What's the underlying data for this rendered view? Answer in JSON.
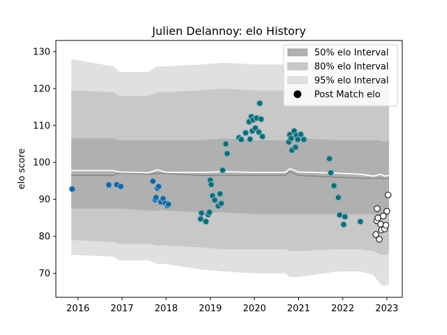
{
  "chart_data": {
    "type": "scatter",
    "title": "Julien Delannoy: elo History",
    "xlabel": "",
    "ylabel": "elo score",
    "xlim": [
      2015.5,
      2023.35
    ],
    "ylim": [
      63.5,
      133
    ],
    "xticks": [
      2016,
      2017,
      2018,
      2019,
      2020,
      2021,
      2022,
      2023
    ],
    "yticks": [
      70,
      80,
      90,
      100,
      110,
      120,
      130
    ],
    "grid": false,
    "legend_position": "top-right",
    "legend": [
      {
        "label": "50% elo Interval",
        "color": "#b0b0b0"
      },
      {
        "label": "80% elo Interval",
        "color": "#c8c8c8"
      },
      {
        "label": "95% elo Interval",
        "color": "#e0e0e0"
      },
      {
        "label": "Post Match elo",
        "color": "#000000"
      }
    ],
    "bands": {
      "x": [
        2015.85,
        2016.8,
        2016.95,
        2017.6,
        2017.8,
        2018.0,
        2018.8,
        2019.3,
        2020.0,
        2020.7,
        2020.8,
        2021.0,
        2021.9,
        2022.4,
        2022.7,
        2022.85,
        2022.95,
        2023.05
      ],
      "ci95_upper": [
        128,
        126,
        124.5,
        124.5,
        126,
        126,
        126.5,
        127,
        126.5,
        126.5,
        129,
        129,
        127,
        127.5,
        128,
        131,
        128.5,
        129
      ],
      "ci95_lower": [
        75,
        74.5,
        73.5,
        73.5,
        72.5,
        72.5,
        71,
        70.5,
        70,
        70,
        69,
        69,
        70.5,
        70.5,
        69.5,
        67,
        66.5,
        67
      ],
      "ci80_upper": [
        119.5,
        119,
        118,
        118,
        119,
        119,
        119.5,
        120,
        119.5,
        119.5,
        121,
        121,
        120,
        120,
        121,
        122,
        121,
        121.5
      ],
      "ci80_lower": [
        79,
        78.5,
        78,
        78,
        77.5,
        77.5,
        77,
        76.5,
        76.5,
        76.5,
        76,
        76,
        76.5,
        76.5,
        76,
        75,
        75,
        75.5
      ],
      "ci50_upper": [
        106.5,
        106.5,
        106,
        106,
        106,
        106,
        106,
        106.5,
        106,
        106,
        106.5,
        106.5,
        106,
        106,
        106,
        106,
        105.5,
        106
      ],
      "ci50_lower": [
        87.5,
        87.5,
        87.5,
        87,
        87,
        87,
        86.5,
        86.5,
        86,
        86,
        86,
        86,
        86,
        86,
        86,
        85.5,
        85.5,
        85.5
      ],
      "mean": [
        96.5,
        96.5,
        97.2,
        96.8,
        97,
        97,
        96.5,
        96.5,
        96.5,
        96.5,
        97.5,
        96.5,
        96,
        95.7,
        95.7,
        95.7,
        95.6,
        95.7
      ],
      "median": [
        97.8,
        97.8,
        97.4,
        97.2,
        98,
        97.3,
        97.3,
        97.5,
        97.3,
        97.3,
        98.3,
        97.4,
        97.1,
        96.8,
        96.3,
        96.8,
        96.3,
        96.5
      ]
    },
    "series": [
      {
        "group": "historical-early",
        "color": "#1f5f99",
        "points": [
          [
            2015.87,
            92.8
          ],
          [
            2016.7,
            93.9
          ],
          [
            2016.88,
            94.0
          ],
          [
            2016.97,
            93.5
          ],
          [
            2017.7,
            94.9
          ],
          [
            2017.75,
            89.9
          ],
          [
            2017.77,
            90.5
          ],
          [
            2017.8,
            93.0
          ],
          [
            2017.83,
            93.5
          ],
          [
            2017.88,
            89.3
          ],
          [
            2017.93,
            90.2
          ],
          [
            2017.98,
            89.0
          ],
          [
            2018.03,
            88.3
          ],
          [
            2018.05,
            88.7
          ]
        ]
      },
      {
        "group": "historical-mid",
        "color": "#1a6b68",
        "points": [
          [
            2018.78,
            84.7
          ],
          [
            2018.8,
            86.3
          ],
          [
            2018.9,
            84.0
          ],
          [
            2018.95,
            85.9
          ],
          [
            2018.98,
            86.5
          ],
          [
            2019.0,
            95.2
          ],
          [
            2019.02,
            94.0
          ],
          [
            2019.05,
            91.0
          ],
          [
            2019.1,
            89.8
          ],
          [
            2019.18,
            88.2
          ],
          [
            2019.22,
            91.5
          ],
          [
            2019.25,
            88.9
          ],
          [
            2019.28,
            97.9
          ],
          [
            2019.35,
            105.0
          ],
          [
            2019.38,
            102.4
          ],
          [
            2019.65,
            106.7
          ],
          [
            2019.7,
            106.2
          ],
          [
            2019.8,
            108.0
          ],
          [
            2019.88,
            111.0
          ],
          [
            2019.9,
            106.3
          ],
          [
            2019.93,
            112.4
          ],
          [
            2019.95,
            108.5
          ],
          [
            2019.97,
            111.5
          ],
          [
            2020.02,
            109.3
          ],
          [
            2020.05,
            112.0
          ],
          [
            2020.1,
            108.2
          ],
          [
            2020.12,
            116.0
          ],
          [
            2020.15,
            111.7
          ],
          [
            2020.18,
            107.0
          ]
        ]
      },
      {
        "group": "historical-late",
        "color": "#1a6b68",
        "points": [
          [
            2020.78,
            105.5
          ],
          [
            2020.8,
            107.5
          ],
          [
            2020.83,
            106.5
          ],
          [
            2020.85,
            103.3
          ],
          [
            2020.9,
            108.5
          ],
          [
            2020.93,
            104.1
          ],
          [
            2020.95,
            107.3
          ],
          [
            2020.98,
            106.2
          ],
          [
            2021.05,
            107.6
          ],
          [
            2021.12,
            106.2
          ],
          [
            2021.7,
            101.0
          ],
          [
            2021.73,
            97.2
          ],
          [
            2021.8,
            93.7
          ],
          [
            2021.9,
            90.5
          ],
          [
            2021.93,
            85.8
          ],
          [
            2022.02,
            83.2
          ],
          [
            2022.05,
            85.3
          ],
          [
            2022.4,
            84.0
          ]
        ]
      },
      {
        "group": "post-match",
        "color": "#ffffff",
        "points": [
          [
            2022.75,
            80.5
          ],
          [
            2022.77,
            84.2
          ],
          [
            2022.78,
            87.5
          ],
          [
            2022.8,
            85.0
          ],
          [
            2022.83,
            79.2
          ],
          [
            2022.86,
            83.3
          ],
          [
            2022.88,
            81.7
          ],
          [
            2022.92,
            85.5
          ],
          [
            2022.95,
            82.0
          ],
          [
            2022.98,
            83.0
          ],
          [
            2023.0,
            86.8
          ],
          [
            2023.03,
            91.2
          ]
        ]
      }
    ]
  }
}
